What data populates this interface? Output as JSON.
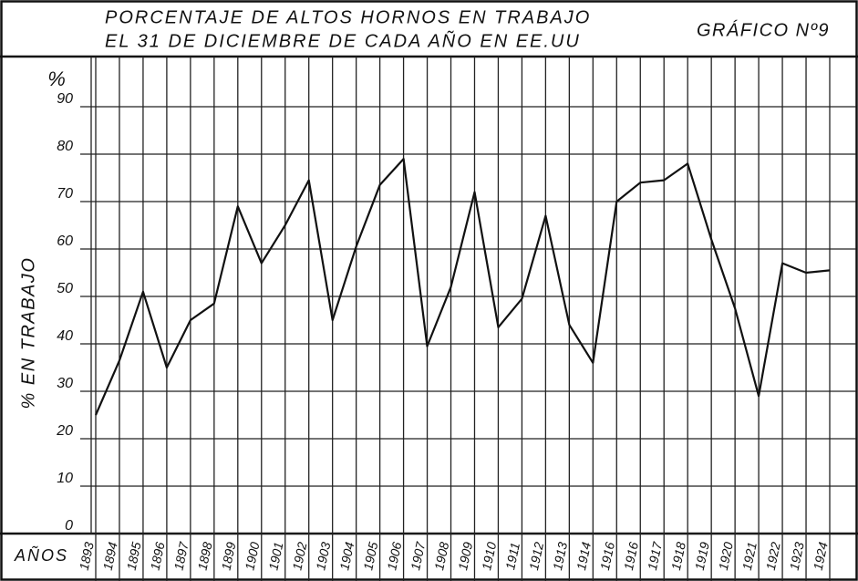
{
  "chart_data": {
    "type": "line",
    "title": "PORCENTAJE DE ALTOS HORNOS EN TRABAJO",
    "subtitle": "EL 31 DE DICIEMBRE DE CADA AÑO EN EE.UU",
    "figure_label": "GRÁFICO Nº9",
    "y_unit": "%",
    "y_label": "% EN TRABAJO",
    "x_label": "AÑOS",
    "categories": [
      "1893",
      "1894",
      "1895",
      "1896",
      "1897",
      "1898",
      "1899",
      "1900",
      "1901",
      "1902",
      "1903",
      "1904",
      "1905",
      "1906",
      "1907",
      "1908",
      "1909",
      "1910",
      "1911",
      "1912",
      "1913",
      "1914",
      "1916",
      "1916",
      "1917",
      "1918",
      "1919",
      "1920",
      "1921",
      "1922",
      "1923",
      "1924"
    ],
    "values": [
      25,
      36.5,
      51,
      35,
      45,
      48.5,
      69,
      57,
      65,
      74.5,
      45,
      60.5,
      73.5,
      79,
      39.5,
      52,
      72,
      43.5,
      49.5,
      67,
      44,
      36,
      70,
      74,
      74.5,
      78,
      62,
      47.5,
      29,
      57,
      55,
      55.5
    ],
    "color": "#111111",
    "ylim": [
      0,
      100
    ],
    "yticks": [
      0,
      10,
      20,
      30,
      40,
      50,
      60,
      70,
      80,
      90
    ],
    "grid": true
  }
}
